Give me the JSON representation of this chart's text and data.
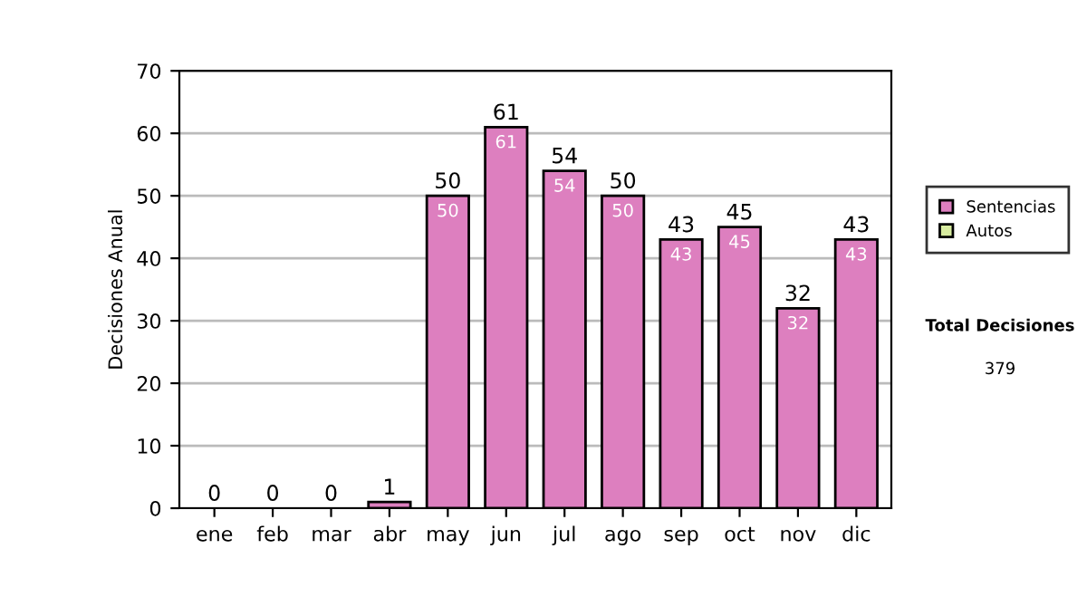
{
  "chart_data": {
    "type": "bar",
    "stacked": true,
    "ylabel": "Decisiones Anual",
    "categories": [
      "ene",
      "feb",
      "mar",
      "abr",
      "may",
      "jun",
      "jul",
      "ago",
      "sep",
      "oct",
      "nov",
      "dic"
    ],
    "series": [
      {
        "name": "Sentencias",
        "color": "#dd7fbf",
        "values": [
          0,
          0,
          0,
          1,
          50,
          61,
          54,
          50,
          43,
          45,
          32,
          43
        ],
        "value_labels": [
          null,
          null,
          null,
          null,
          "50",
          "61",
          "54",
          "50",
          "43",
          "45",
          "32",
          "43"
        ]
      },
      {
        "name": "Autos",
        "color": "#d8eca0",
        "values": [
          0,
          0,
          0,
          0,
          0,
          0,
          0,
          0,
          0,
          0,
          0,
          0
        ]
      }
    ],
    "totals": [
      "0",
      "0",
      "0",
      "1",
      "50",
      "61",
      "54",
      "50",
      "43",
      "45",
      "32",
      "43"
    ],
    "ylim": [
      0,
      70
    ],
    "yticks": [
      0,
      10,
      20,
      30,
      40,
      50,
      60,
      70
    ],
    "grid": "y",
    "legend": "right",
    "annotations": [
      "Total Decisiones",
      "379"
    ]
  }
}
